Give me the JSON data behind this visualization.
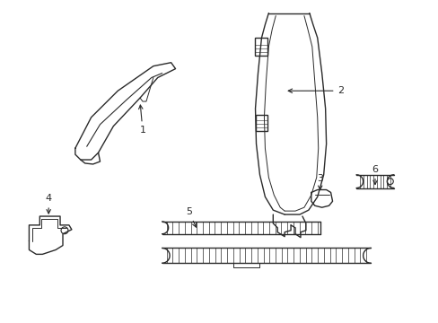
{
  "background_color": "#ffffff",
  "line_color": "#2a2a2a",
  "line_width": 1.0,
  "figsize": [
    4.89,
    3.6
  ],
  "dpi": 100
}
